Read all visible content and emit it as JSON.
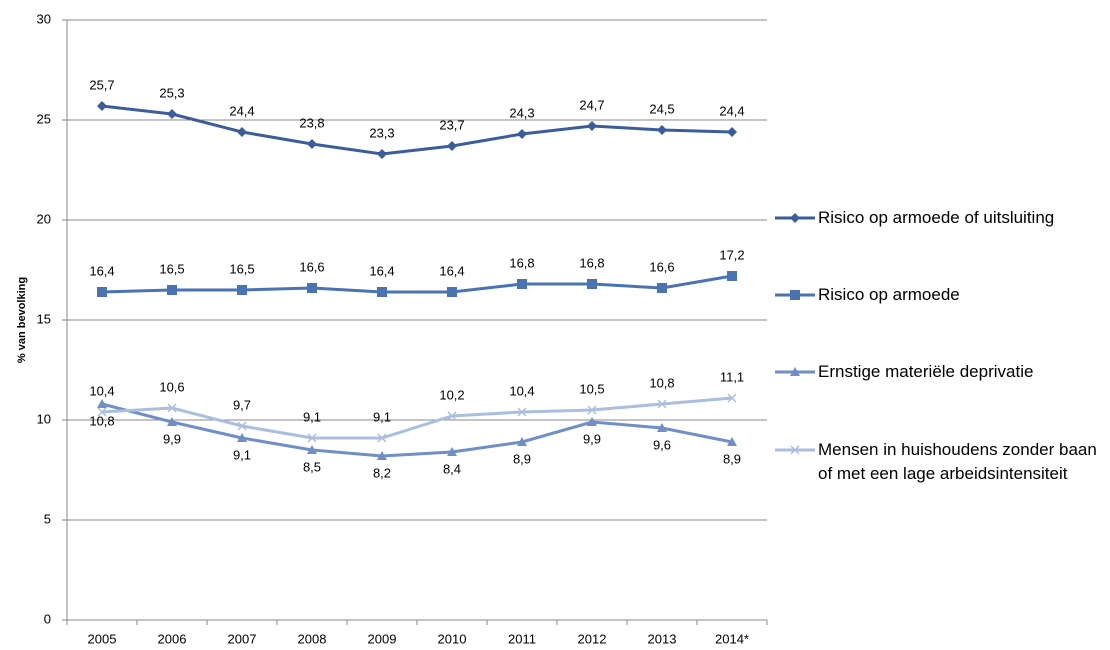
{
  "chart_data": {
    "type": "line",
    "y_label": "% van bevolking",
    "categories": [
      "2005",
      "2006",
      "2007",
      "2008",
      "2009",
      "2010",
      "2011",
      "2012",
      "2013",
      "2014*"
    ],
    "ylim": [
      0,
      30
    ],
    "yticks": [
      0,
      5,
      10,
      15,
      20,
      25,
      30
    ],
    "grid": true,
    "legend": "right",
    "series": [
      {
        "name": "Risico op armoede of uitsluiting",
        "color": "#3b5e9b",
        "marker": "diamond",
        "label_position": "above",
        "values": [
          25.7,
          25.3,
          24.4,
          23.8,
          23.3,
          23.7,
          24.3,
          24.7,
          24.5,
          24.4
        ],
        "value_labels": [
          "25,7",
          "25,3",
          "24,4",
          "23,8",
          "23,3",
          "23,7",
          "24,3",
          "24,7",
          "24,5",
          "24,4"
        ]
      },
      {
        "name": "Risico op armoede",
        "color": "#4a73b3",
        "marker": "square",
        "label_position": "above",
        "values": [
          16.4,
          16.5,
          16.5,
          16.6,
          16.4,
          16.4,
          16.8,
          16.8,
          16.6,
          17.2
        ],
        "value_labels": [
          "16,4",
          "16,5",
          "16,5",
          "16,6",
          "16,4",
          "16,4",
          "16,8",
          "16,8",
          "16,6",
          "17,2"
        ]
      },
      {
        "name": "Ernstige materiële deprivatie",
        "color": "#6f8fc6",
        "marker": "triangle",
        "label_position": "below",
        "values": [
          10.8,
          9.9,
          9.1,
          8.5,
          8.2,
          8.4,
          8.9,
          9.9,
          9.6,
          8.9
        ],
        "value_labels": [
          "10,8",
          "9,9",
          "9,1",
          "8,5",
          "8,2",
          "8,4",
          "8,9",
          "9,9",
          "9,6",
          "8,9"
        ]
      },
      {
        "name": "Mensen in huishoudens zonder baan of met een lage arbeidsintensiteit",
        "color": "#aabedf",
        "marker": "x",
        "label_position": "above",
        "values": [
          10.4,
          10.6,
          9.7,
          9.1,
          9.1,
          10.2,
          10.4,
          10.5,
          10.8,
          11.1
        ],
        "value_labels": [
          "10,4",
          "10,6",
          "9,7",
          "9,1",
          "9,1",
          "10,2",
          "10,4",
          "10,5",
          "10,8",
          "11,1"
        ]
      }
    ]
  }
}
